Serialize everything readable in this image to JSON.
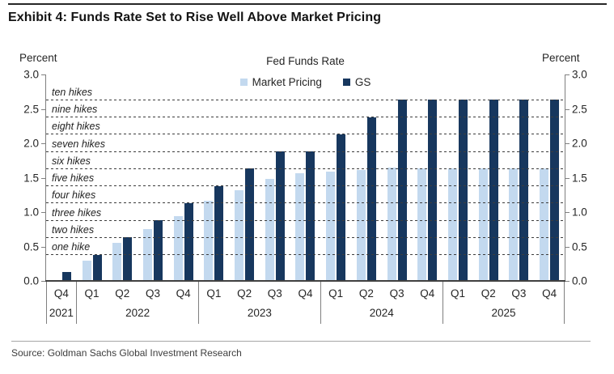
{
  "exhibit_title": "Exhibit 4: Funds Rate Set to Rise Well Above Market Pricing",
  "source_line": "Source: Goldman Sachs Global Investment Research",
  "axis_unit": "Percent",
  "colors": {
    "market_pricing": "#c3d9ef",
    "gs": "#17375e",
    "gridline": "#3d3d3d",
    "axis": "#7f7f7f"
  },
  "chart_data": {
    "type": "bar",
    "title": "Fed Funds Rate",
    "ylabel_left": "Percent",
    "ylabel_right": "Percent",
    "ylim": [
      0.0,
      3.0
    ],
    "yticks": [
      3.0,
      2.5,
      2.0,
      1.5,
      1.0,
      0.5,
      0.0
    ],
    "ytick_labels": [
      "3.0",
      "2.5",
      "2.0",
      "1.5",
      "1.0",
      "0.5",
      "0.0"
    ],
    "grid": "dashed horizontal lines at each cumulative-hike level, drawn over bars",
    "legend_position": "top-center",
    "quarters": [
      "Q4",
      "Q1",
      "Q2",
      "Q3",
      "Q4",
      "Q1",
      "Q2",
      "Q3",
      "Q4",
      "Q1",
      "Q2",
      "Q3",
      "Q4",
      "Q1",
      "Q2",
      "Q3",
      "Q4"
    ],
    "year_groups": [
      {
        "label": "2021",
        "span": 1
      },
      {
        "label": "2022",
        "span": 4
      },
      {
        "label": "2023",
        "span": 4
      },
      {
        "label": "2024",
        "span": 4
      },
      {
        "label": "2025",
        "span": 4
      }
    ],
    "series": [
      {
        "name": "Market Pricing",
        "color": "#c3d9ef",
        "values": [
          null,
          0.3,
          0.55,
          0.75,
          0.94,
          1.16,
          1.32,
          1.48,
          1.57,
          1.59,
          1.61,
          1.65,
          1.63,
          1.64,
          1.63,
          1.63,
          1.64
        ]
      },
      {
        "name": "GS",
        "color": "#17375e",
        "values": [
          0.13,
          0.38,
          0.63,
          0.88,
          1.13,
          1.38,
          1.63,
          1.88,
          1.88,
          2.13,
          2.38,
          2.63,
          2.63,
          2.63,
          2.63,
          2.63,
          2.63
        ]
      }
    ],
    "hike_lines": [
      {
        "label": "one hike",
        "value": 0.375
      },
      {
        "label": "two hikes",
        "value": 0.625
      },
      {
        "label": "three hikes",
        "value": 0.875
      },
      {
        "label": "four hikes",
        "value": 1.125
      },
      {
        "label": "five hikes",
        "value": 1.375
      },
      {
        "label": "six hikes",
        "value": 1.625
      },
      {
        "label": "seven hikes",
        "value": 1.875
      },
      {
        "label": "eight hikes",
        "value": 2.125
      },
      {
        "label": "nine hikes",
        "value": 2.375
      },
      {
        "label": "ten hikes",
        "value": 2.625
      }
    ]
  }
}
